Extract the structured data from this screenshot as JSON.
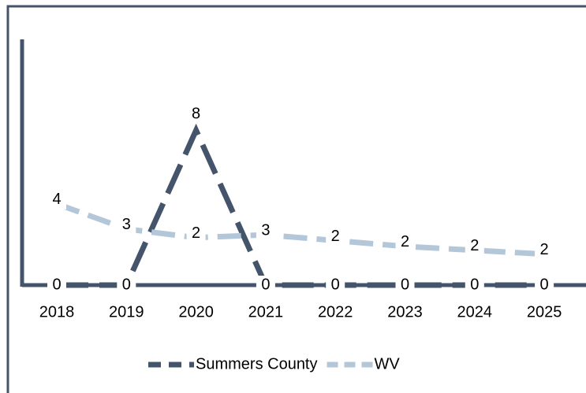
{
  "chart_data": {
    "type": "line",
    "categories": [
      "2018",
      "2019",
      "2020",
      "2021",
      "2022",
      "2023",
      "2024",
      "2025"
    ],
    "series": [
      {
        "name": "Summers County",
        "color": "#44546a",
        "values": [
          0,
          0,
          8,
          0,
          0,
          0,
          0,
          0
        ]
      },
      {
        "name": "WV",
        "color": "#b4c7d9",
        "values": [
          4.2,
          2.9,
          2.45,
          2.6,
          2.3,
          2.0,
          1.8,
          1.6
        ],
        "value_labels": [
          "4",
          "3",
          "2",
          "3",
          "2",
          "2",
          "2",
          "2"
        ]
      }
    ],
    "ylim": [
      0,
      12.7
    ],
    "legend": "bottom"
  }
}
